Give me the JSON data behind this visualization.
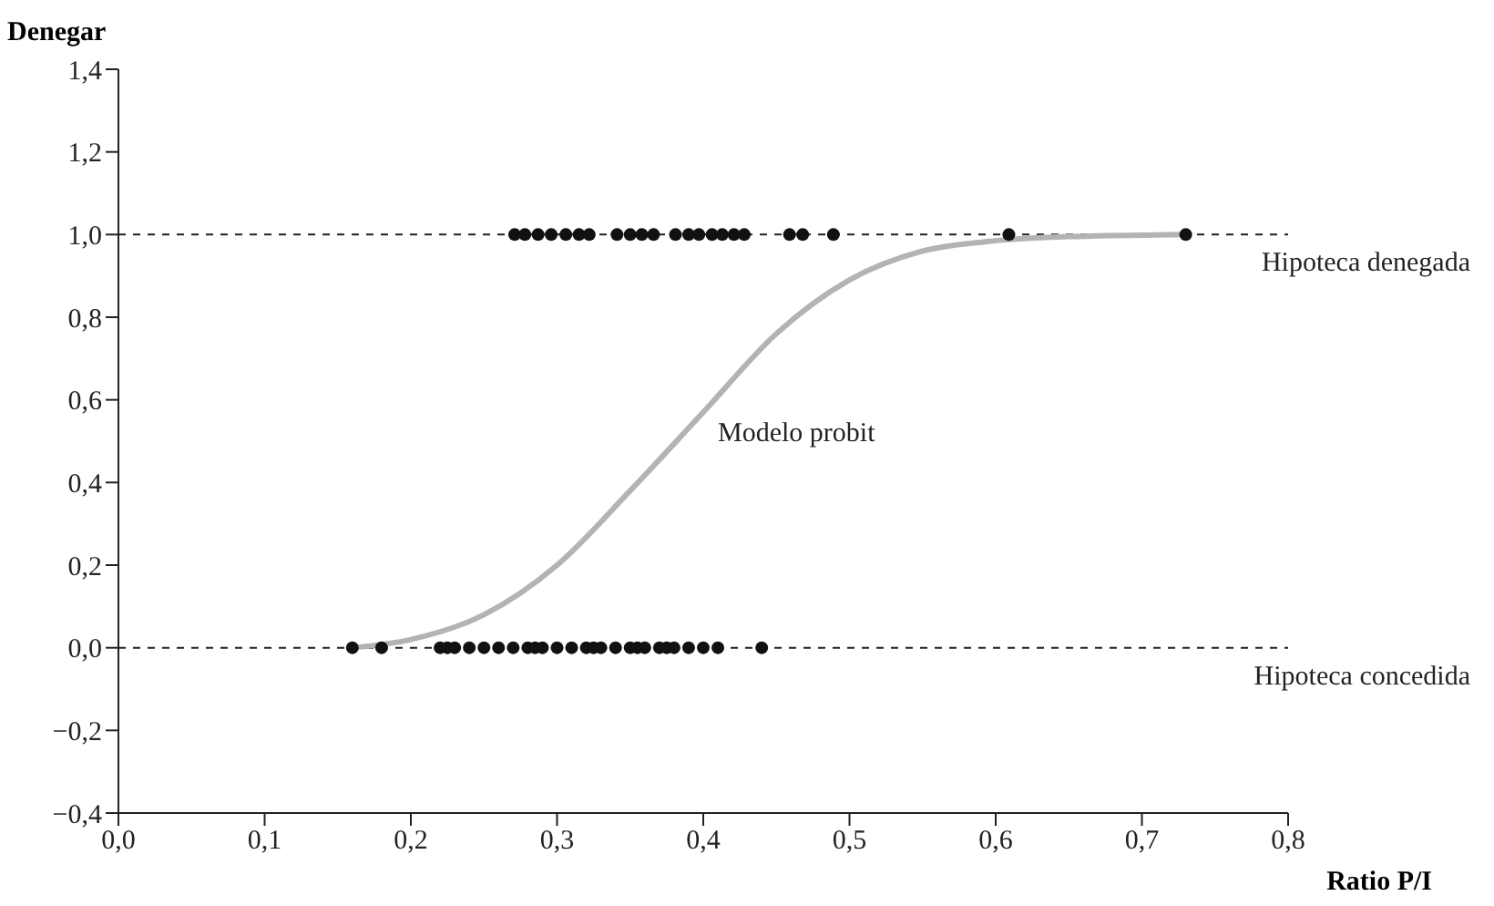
{
  "chart_data": {
    "type": "scatter",
    "xlabel": "Ratio P/I",
    "ylabel": "Denegar",
    "xlim": [
      0,
      0.8
    ],
    "ylim": [
      -0.4,
      1.4
    ],
    "xticks": [
      {
        "value": 0,
        "label": "0,0"
      },
      {
        "value": 0.1,
        "label": "0,1"
      },
      {
        "value": 0.2,
        "label": "0,2"
      },
      {
        "value": 0.3,
        "label": "0,3"
      },
      {
        "value": 0.4,
        "label": "0,4"
      },
      {
        "value": 0.5,
        "label": "0,5"
      },
      {
        "value": 0.6,
        "label": "0,6"
      },
      {
        "value": 0.7,
        "label": "0,7"
      },
      {
        "value": 0.8,
        "label": "0,8"
      }
    ],
    "yticks": [
      {
        "value": -0.4,
        "label": "−0,4"
      },
      {
        "value": -0.2,
        "label": "−0,2"
      },
      {
        "value": 0,
        "label": "0,0"
      },
      {
        "value": 0.2,
        "label": "0,2"
      },
      {
        "value": 0.4,
        "label": "0,4"
      },
      {
        "value": 0.6,
        "label": "0,6"
      },
      {
        "value": 0.8,
        "label": "0,8"
      },
      {
        "value": 1,
        "label": "1,0"
      },
      {
        "value": 1.2,
        "label": "1,2"
      },
      {
        "value": 1.4,
        "label": "1,4"
      }
    ],
    "grid": false,
    "legend": false,
    "series": [
      {
        "marker": "circle",
        "color": "#111111",
        "x": [
          0.271,
          0.278,
          0.287,
          0.296,
          0.306,
          0.315,
          0.322,
          0.341,
          0.35,
          0.358,
          0.366,
          0.381,
          0.39,
          0.397,
          0.406,
          0.413,
          0.421,
          0.428,
          0.459,
          0.468,
          0.489,
          0.609,
          0.73
        ],
        "values": [
          1,
          1,
          1,
          1,
          1,
          1,
          1,
          1,
          1,
          1,
          1,
          1,
          1,
          1,
          1,
          1,
          1,
          1,
          1,
          1,
          1,
          1,
          1
        ]
      },
      {
        "marker": "circle",
        "color": "#111111",
        "x": [
          0.16,
          0.18,
          0.22,
          0.225,
          0.23,
          0.24,
          0.25,
          0.26,
          0.27,
          0.28,
          0.285,
          0.29,
          0.3,
          0.31,
          0.32,
          0.325,
          0.33,
          0.34,
          0.35,
          0.355,
          0.36,
          0.37,
          0.375,
          0.38,
          0.39,
          0.4,
          0.41,
          0.44
        ],
        "values": [
          0,
          0,
          0,
          0,
          0,
          0,
          0,
          0,
          0,
          0,
          0,
          0,
          0,
          0,
          0,
          0,
          0,
          0,
          0,
          0,
          0,
          0,
          0,
          0,
          0,
          0,
          0,
          0
        ]
      },
      {
        "type": "line",
        "color": "#b3b3b3",
        "x": [
          0.16,
          0.2,
          0.25,
          0.3,
          0.35,
          0.4,
          0.45,
          0.5,
          0.55,
          0.6,
          0.65,
          0.73
        ],
        "values": [
          0,
          0.02,
          0.08,
          0.2,
          0.38,
          0.57,
          0.76,
          0.89,
          0.96,
          0.985,
          0.995,
          1
        ]
      }
    ],
    "ref_lines": [
      {
        "axis": "y",
        "value": 1,
        "label": "Hipoteca denegada",
        "line_style": "dashed"
      },
      {
        "axis": "y",
        "value": 0,
        "label": "Hipoteca concedida",
        "line_style": "dashed"
      }
    ],
    "annotations": [
      "Modelo probit"
    ]
  }
}
